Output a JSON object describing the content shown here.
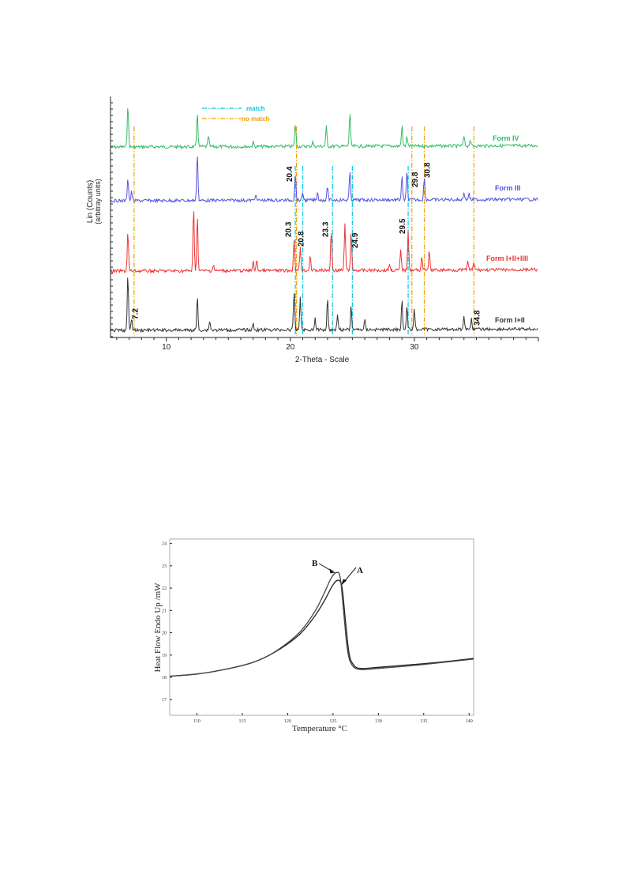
{
  "chart_data": [
    {
      "type": "line",
      "title": "",
      "xlabel": "2-Theta - Scale",
      "ylabel": "Lin (Counts)",
      "ylabel_sub": "(arbitray units)",
      "xlim": [
        5.5,
        40.0
      ],
      "x_ticks": [
        10,
        20,
        30
      ],
      "grid": false,
      "legend": {
        "placement": "top-left",
        "entries": [
          {
            "label": "match",
            "color": "#00c8e0",
            "style": "dash-dot"
          },
          {
            "label": "no match",
            "color": "#f0a000",
            "style": "dash-dot"
          }
        ]
      },
      "series": [
        {
          "name": "Form IV",
          "color": "#33bb66",
          "peaks": [
            [
              6.9,
              55
            ],
            [
              12.5,
              45
            ],
            [
              13.4,
              14
            ],
            [
              17.0,
              6
            ],
            [
              20.4,
              30
            ],
            [
              21.8,
              6
            ],
            [
              22.9,
              25
            ],
            [
              24.8,
              44
            ],
            [
              29.0,
              26
            ],
            [
              29.4,
              12
            ],
            [
              34.0,
              12
            ],
            [
              34.5,
              8
            ]
          ]
        },
        {
          "name": "Form III",
          "color": "#5555dd",
          "peaks": [
            [
              6.9,
              30
            ],
            [
              7.2,
              12
            ],
            [
              12.5,
              62
            ],
            [
              17.2,
              8
            ],
            [
              20.4,
              34
            ],
            [
              21.0,
              10
            ],
            [
              22.2,
              10
            ],
            [
              23.0,
              18
            ],
            [
              24.8,
              36
            ],
            [
              29.0,
              30
            ],
            [
              29.4,
              36
            ],
            [
              30.8,
              28
            ],
            [
              34.0,
              10
            ],
            [
              34.4,
              8
            ]
          ]
        },
        {
          "name": "Form I+II+IIII",
          "color": "#ee3333",
          "peaks": [
            [
              6.9,
              50
            ],
            [
              12.2,
              80
            ],
            [
              12.5,
              70
            ],
            [
              13.8,
              8
            ],
            [
              17.0,
              12
            ],
            [
              17.3,
              14
            ],
            [
              20.3,
              40
            ],
            [
              20.8,
              30
            ],
            [
              21.6,
              20
            ],
            [
              23.3,
              52
            ],
            [
              24.4,
              60
            ],
            [
              24.9,
              48
            ],
            [
              28.0,
              8
            ],
            [
              28.9,
              25
            ],
            [
              29.5,
              50
            ],
            [
              30.6,
              18
            ],
            [
              31.2,
              24
            ],
            [
              34.3,
              12
            ],
            [
              34.8,
              10
            ]
          ]
        },
        {
          "name": "Form I+II",
          "color": "#333333",
          "peaks": [
            [
              6.9,
              70
            ],
            [
              7.2,
              15
            ],
            [
              12.5,
              42
            ],
            [
              13.5,
              12
            ],
            [
              17.0,
              8
            ],
            [
              20.3,
              50
            ],
            [
              20.8,
              42
            ],
            [
              22.0,
              14
            ],
            [
              23.0,
              40
            ],
            [
              23.8,
              20
            ],
            [
              24.9,
              30
            ],
            [
              26.0,
              12
            ],
            [
              29.0,
              38
            ],
            [
              29.4,
              30
            ],
            [
              30.0,
              26
            ],
            [
              34.0,
              18
            ],
            [
              34.6,
              14
            ]
          ]
        }
      ],
      "reference_lines": [
        {
          "x": 7.4,
          "type": "no match"
        },
        {
          "x": 20.5,
          "type": "no match"
        },
        {
          "x": 20.4,
          "type": "match"
        },
        {
          "x": 21.0,
          "type": "match"
        },
        {
          "x": 23.4,
          "type": "match"
        },
        {
          "x": 25.0,
          "type": "match"
        },
        {
          "x": 29.5,
          "type": "match"
        },
        {
          "x": 29.8,
          "type": "no match"
        },
        {
          "x": 30.8,
          "type": "no match"
        },
        {
          "x": 34.8,
          "type": "no match"
        }
      ],
      "peak_labels": [
        {
          "text": "7.2",
          "x": 7.2
        },
        {
          "text": "20.4",
          "x": 20.4
        },
        {
          "text": "20.3",
          "x": 20.3
        },
        {
          "text": "20.8",
          "x": 20.8
        },
        {
          "text": "23.3",
          "x": 23.3
        },
        {
          "text": "24.9",
          "x": 24.9
        },
        {
          "text": "29.5",
          "x": 29.5
        },
        {
          "text": "29.8",
          "x": 29.8
        },
        {
          "text": "30.8",
          "x": 30.8
        },
        {
          "text": "34.8",
          "x": 34.8
        }
      ]
    },
    {
      "type": "line",
      "title": "",
      "xlabel": "Temperature °C",
      "ylabel": "Heat Flow Endo Up /mW",
      "xlim": [
        107,
        140.5
      ],
      "ylim": [
        16.3,
        24.2
      ],
      "x_ticks": [
        110,
        115,
        120,
        125,
        130,
        135,
        140
      ],
      "y_ticks": [
        17,
        18,
        19,
        20,
        21,
        22,
        23,
        24
      ],
      "grid": false,
      "series": [
        {
          "name": "A",
          "color": "#222222",
          "points": [
            [
              107,
              18.05
            ],
            [
              110,
              18.15
            ],
            [
              113,
              18.35
            ],
            [
              116,
              18.65
            ],
            [
              118,
              19.0
            ],
            [
              120,
              19.5
            ],
            [
              121.5,
              20.0
            ],
            [
              123,
              20.75
            ],
            [
              124,
              21.4
            ],
            [
              125,
              22.15
            ],
            [
              125.6,
              22.35
            ],
            [
              126.0,
              22.0
            ],
            [
              126.4,
              20.4
            ],
            [
              126.8,
              19.0
            ],
            [
              127.3,
              18.55
            ],
            [
              128.0,
              18.4
            ],
            [
              130,
              18.45
            ],
            [
              133,
              18.55
            ],
            [
              136,
              18.65
            ],
            [
              140.5,
              18.85
            ]
          ]
        },
        {
          "name": "B",
          "color": "#444444",
          "points": [
            [
              107,
              18.05
            ],
            [
              110,
              18.15
            ],
            [
              113,
              18.35
            ],
            [
              116,
              18.65
            ],
            [
              118,
              19.0
            ],
            [
              120,
              19.55
            ],
            [
              121.5,
              20.1
            ],
            [
              123,
              20.95
            ],
            [
              124,
              21.75
            ],
            [
              124.8,
              22.45
            ],
            [
              125.4,
              22.7
            ],
            [
              125.8,
              22.45
            ],
            [
              126.2,
              20.8
            ],
            [
              126.6,
              19.2
            ],
            [
              127.1,
              18.55
            ],
            [
              128.0,
              18.35
            ],
            [
              130,
              18.4
            ],
            [
              133,
              18.5
            ],
            [
              136,
              18.62
            ],
            [
              140.5,
              18.82
            ]
          ]
        }
      ],
      "annotations": [
        {
          "text": "B",
          "x": 125.4,
          "y": 22.7
        },
        {
          "text": "A",
          "x": 125.8,
          "y": 22.2
        }
      ]
    }
  ]
}
